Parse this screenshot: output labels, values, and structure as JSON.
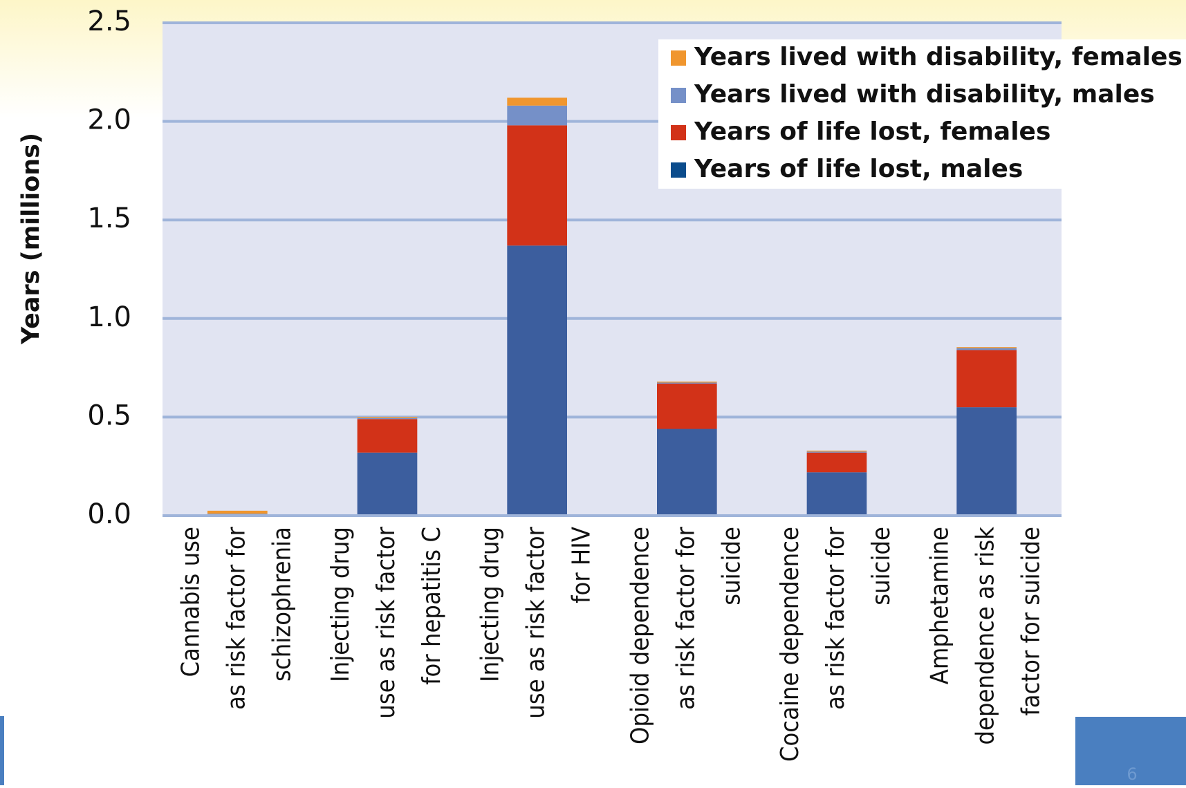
{
  "chart_data": {
    "type": "stacked_bar",
    "y_label": "Years (millions)",
    "categories": [
      [
        "Cannabis use",
        "as risk factor for",
        "schizophrenia"
      ],
      [
        "Injecting drug",
        "use as risk factor",
        "for hepatitis C"
      ],
      [
        "Injecting drug",
        "use as risk factor",
        "for HIV"
      ],
      [
        "Opioid dependence",
        "as risk factor for",
        "suicide"
      ],
      [
        "Cocaine dependence",
        "as risk factor for",
        "suicide"
      ],
      [
        "Amphetamine",
        "dependence as risk",
        "factor for suicide"
      ]
    ],
    "series": [
      {
        "name": "Years of life lost, males",
        "color": "#3c5e9e",
        "legend_color": "#0b4c8c",
        "values": [
          0,
          0.32,
          1.37,
          0.44,
          0.22,
          0.55
        ]
      },
      {
        "name": "Years of life lost, females",
        "color": "#d23218",
        "values": [
          0,
          0.17,
          0.61,
          0.23,
          0.1,
          0.29
        ]
      },
      {
        "name": "Years lived with disability, males",
        "color": "#7590c8",
        "values": [
          0.01,
          0.005,
          0.1,
          0.005,
          0.005,
          0.01
        ]
      },
      {
        "name": "Years lived with disability, females",
        "color": "#f0962e",
        "values": [
          0.015,
          0.005,
          0.04,
          0.005,
          0.005,
          0.005
        ]
      }
    ],
    "ylim": [
      0,
      2.5
    ],
    "yticks": [
      {
        "value": 0,
        "label": "0.0"
      },
      {
        "value": 0.5,
        "label": "0.5"
      },
      {
        "value": 1,
        "label": "1.0"
      },
      {
        "value": 1.5,
        "label": "1.5"
      },
      {
        "value": 2,
        "label": "2.0"
      },
      {
        "value": 2.5,
        "label": "2.5"
      }
    ],
    "grid": true,
    "legend": "top-right",
    "slide_number": "6"
  }
}
